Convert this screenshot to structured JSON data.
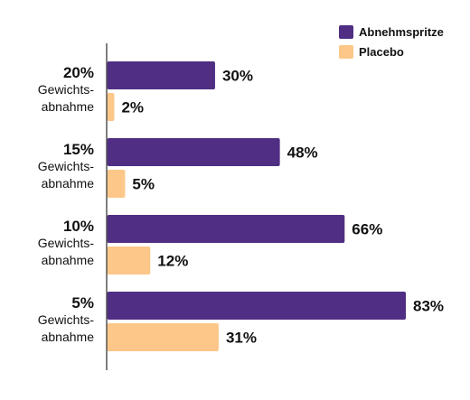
{
  "chart_data": {
    "type": "bar",
    "orientation": "horizontal",
    "categories": [
      [
        "20%",
        "Gewichts-",
        "abnahme"
      ],
      [
        "15%",
        "Gewichts-",
        "abnahme"
      ],
      [
        "10%",
        "Gewichts-",
        "abnahme"
      ],
      [
        "5%",
        "Gewichts-",
        "abnahme"
      ]
    ],
    "series": [
      {
        "name": "Abnehmspritze",
        "color": "#4f2e83",
        "values": [
          30,
          48,
          66,
          83
        ],
        "labels": [
          "30%",
          "48%",
          "66%",
          "83%"
        ]
      },
      {
        "name": "Placebo",
        "color": "#fcc788",
        "values": [
          2,
          5,
          12,
          31
        ],
        "labels": [
          "2%",
          "5%",
          "12%",
          "31%"
        ]
      }
    ],
    "xlim": [
      0,
      100
    ],
    "title": "",
    "xlabel": "",
    "ylabel": "",
    "grid": false,
    "legend_position": "top-right"
  }
}
